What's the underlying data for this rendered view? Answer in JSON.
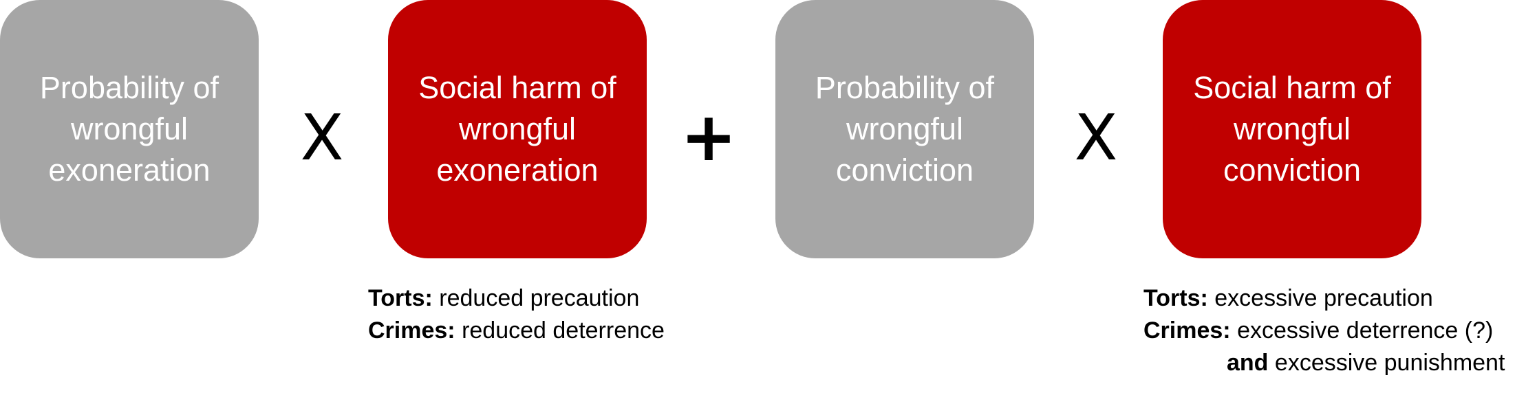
{
  "colors": {
    "gray_box": "#a6a6a6",
    "red_box": "#c00000",
    "box_text": "#ffffff",
    "operator_text": "#000000"
  },
  "boxes": [
    {
      "text": "Probability of wrongful exoneration",
      "color": "gray"
    },
    {
      "text": "Social harm of wrongful exoneration",
      "color": "red"
    },
    {
      "text": "Probability of wrongful conviction",
      "color": "gray"
    },
    {
      "text": "Social harm of wrongful conviction",
      "color": "red"
    }
  ],
  "operators": [
    "X",
    "+",
    "X"
  ],
  "notes": {
    "exoneration": {
      "torts_label": "Torts:",
      "torts_text": "reduced precaution",
      "crimes_label": "Crimes:",
      "crimes_text": "reduced deterrence"
    },
    "conviction": {
      "torts_label": "Torts:",
      "torts_text": "excessive precaution",
      "crimes_label": "Crimes:",
      "crimes_text": "excessive deterrence (?)",
      "and_label": "and",
      "and_text": "excessive punishment"
    }
  }
}
